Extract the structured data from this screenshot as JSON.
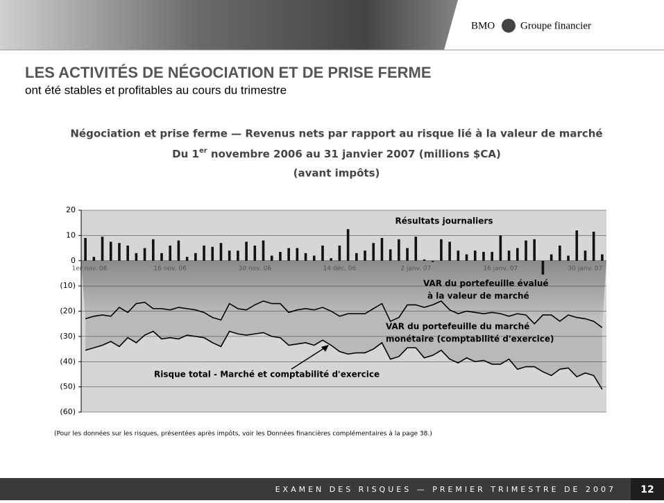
{
  "header": {
    "brand": "BMO",
    "group": "Groupe financier"
  },
  "slide": {
    "title": "LES ACTIVITÉS DE NÉGOCIATION ET DE PRISE FERME",
    "subtitle": "ont été stables et profitables au cours du trimestre",
    "footnote": "(Pour les données sur les risques, présentées après impôts, voir les Données financières complémentaires à la page 38.)",
    "footer": "EXAMEN DES RISQUES — PREMIER TRIMESTRE DE 2007",
    "page_number": "12"
  },
  "chart_data": {
    "type": "bar_line",
    "title": "Négociation et prise ferme — Revenus nets par rapport au risque lié à la valeur de marché",
    "subtitle_parts": [
      "Du 1",
      "er",
      " novembre 2006 au 31 janvier 2007 (millions $CA)"
    ],
    "subtitle2": "(avant impôts)",
    "annotations": [
      "Résultats journaliers",
      "VAR du portefeuille évalué",
      "à la valeur de marché",
      "VAR du portefeuille du marché",
      "monétaire (comptabilité d'exercice)",
      "Risque total - Marché et comptabilité d'exercice"
    ],
    "categories": [
      "1er nov. 06",
      null,
      null,
      null,
      null,
      null,
      null,
      null,
      null,
      null,
      "16 nov. 06",
      null,
      null,
      null,
      null,
      null,
      null,
      null,
      null,
      null,
      "30 nov. 06",
      null,
      null,
      null,
      null,
      null,
      null,
      null,
      null,
      null,
      "14 déc. 06",
      null,
      null,
      null,
      null,
      null,
      null,
      null,
      null,
      "2 janv. 07",
      null,
      null,
      null,
      null,
      null,
      null,
      null,
      null,
      null,
      "16 janv. 07",
      null,
      null,
      null,
      null,
      null,
      null,
      null,
      null,
      null,
      "30 janv. 07",
      null,
      null
    ],
    "series": [
      {
        "color": "#111111",
        "values": [
          9,
          1.5,
          9.5,
          7.5,
          7,
          6,
          3,
          5,
          8.5,
          3,
          6,
          8,
          1.5,
          3,
          6,
          5.5,
          7,
          4,
          4,
          7.5,
          6,
          8,
          2,
          3.5,
          5,
          5,
          3,
          2,
          6,
          1,
          6,
          12.5,
          3,
          4,
          7,
          9,
          4.5,
          8.5,
          5,
          9.5,
          0.5,
          -0.5,
          8.5,
          7.5,
          4,
          2.5,
          4,
          3.5,
          3.5,
          10,
          4,
          5,
          8,
          8.5,
          -5.5,
          2.5,
          6,
          2,
          12,
          4,
          11.5,
          2.5
        ]
      },
      {
        "color": "#000000",
        "values": [
          -23,
          -22,
          -21.5,
          -22,
          -18.5,
          -20.5,
          -17,
          -16.5,
          -19,
          -19,
          -19.5,
          -18.5,
          -19,
          -19.5,
          -20.5,
          -22.5,
          -23.5,
          -17,
          -19,
          -19.5,
          -17.5,
          -16,
          -17,
          -17,
          -20.5,
          -19.5,
          -19,
          -19.5,
          -18.5,
          -20,
          -22,
          -21,
          -21,
          -21,
          -19,
          -17,
          -24,
          -22.5,
          -17.5,
          -17.5,
          -18.5,
          -17.5,
          -16,
          -19.5,
          -21,
          -20,
          -20.5,
          -21,
          -20.5,
          -21,
          -22,
          -21,
          -21.5,
          -25,
          -21.5,
          -21.5,
          -24,
          -21.5,
          -22.5,
          -23,
          -24,
          -26.5
        ]
      },
      {
        "color": "#000000",
        "values": [
          -35.5,
          -34.5,
          -33.5,
          -32,
          -34,
          -30.5,
          -32.5,
          -29.5,
          -28,
          -31,
          -30.5,
          -31,
          -29.5,
          -30,
          -30.5,
          -32.5,
          -34,
          -28,
          -29,
          -29.5,
          -29,
          -28.5,
          -30,
          -30.5,
          -33.5,
          -33,
          -32.5,
          -33.5,
          -31.5,
          -33.5,
          -36,
          -37,
          -36.5,
          -36.5,
          -35,
          -32.5,
          -39,
          -38,
          -34.5,
          -34.5,
          -38.5,
          -37.5,
          -35.5,
          -39,
          -40.5,
          -38.5,
          -40,
          -39.5,
          -41,
          -41,
          -39,
          -43,
          -42,
          -42,
          -44,
          -45.5,
          -43,
          -42.5,
          -46,
          -44.5,
          -45.5,
          -51
        ]
      }
    ],
    "ylim": [
      -60,
      20
    ],
    "yticks": [
      20,
      10,
      0,
      {
        "value": -10,
        "label": "(10)"
      },
      {
        "value": -20,
        "label": "(20)"
      },
      {
        "value": -30,
        "label": "(30)"
      },
      {
        "value": -40,
        "label": "(40)"
      },
      {
        "value": -50,
        "label": "(50)"
      },
      {
        "value": -60,
        "label": "(60)"
      }
    ],
    "grid": true
  }
}
